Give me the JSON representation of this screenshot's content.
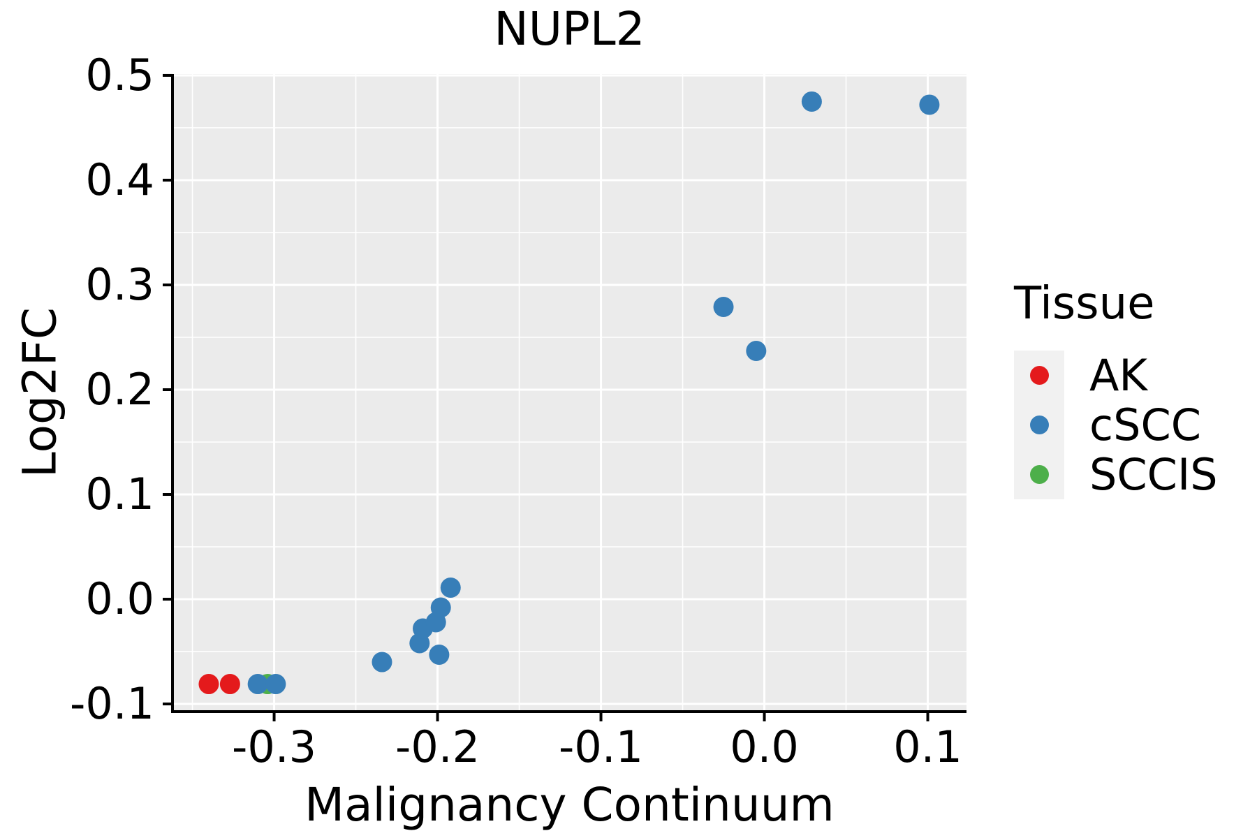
{
  "title": "NUPL2",
  "axes": {
    "x": {
      "label": "Malignancy Continuum",
      "domain": [
        -0.3622,
        0.1237
      ],
      "major_ticks": [
        {
          "v": -0.3,
          "label": "-0.3"
        },
        {
          "v": -0.2,
          "label": "-0.2"
        },
        {
          "v": -0.1,
          "label": "-0.1"
        },
        {
          "v": 0.0,
          "label": "0.0"
        },
        {
          "v": 0.1,
          "label": "0.1"
        }
      ],
      "minor_ticks": [
        -0.35,
        -0.25,
        -0.15,
        -0.05,
        0.05
      ]
    },
    "y": {
      "label": "Log2FC",
      "domain": [
        -0.1073,
        0.5013
      ],
      "major_ticks": [
        {
          "v": 0.5,
          "label": "0.5"
        },
        {
          "v": 0.4,
          "label": "0.4"
        },
        {
          "v": 0.3,
          "label": "0.3"
        },
        {
          "v": 0.2,
          "label": "0.2"
        },
        {
          "v": 0.1,
          "label": "0.1"
        },
        {
          "v": 0.0,
          "label": "0.0"
        },
        {
          "v": -0.1,
          "label": "-0.1"
        }
      ],
      "minor_ticks": [
        -0.05,
        0.05,
        0.15,
        0.25,
        0.35,
        0.45
      ]
    }
  },
  "legend": {
    "title": "Tissue",
    "items": [
      {
        "label": "AK",
        "color": "#E41A1C"
      },
      {
        "label": "cSCC",
        "color": "#377EB8"
      },
      {
        "label": "SCCIS",
        "color": "#4DAF4A"
      }
    ]
  },
  "colors": {
    "panel_background": "#EBEBEB",
    "grid": "#FFFFFF",
    "spine": "#000000",
    "legend_key_background": "#F1F1F1",
    "ak": "#E41A1C",
    "cscc": "#377EB8",
    "sccis": "#4DAF4A"
  },
  "chart_data": {
    "type": "scatter",
    "title": "NUPL2",
    "xlabel": "Malignancy Continuum",
    "ylabel": "Log2FC",
    "xlim": [
      -0.3622,
      0.1237
    ],
    "ylim": [
      -0.1073,
      0.5013
    ],
    "grid": true,
    "legend_position": "right",
    "series": [
      {
        "name": "AK",
        "color": "#E41A1C",
        "points": [
          [
            -0.34,
            -0.081
          ],
          [
            -0.327,
            -0.081
          ]
        ]
      },
      {
        "name": "SCCIS",
        "color": "#4DAF4A",
        "points": [
          [
            -0.304,
            -0.081
          ]
        ]
      },
      {
        "name": "cSCC",
        "color": "#377EB8",
        "points": [
          [
            -0.31,
            -0.081
          ],
          [
            -0.299,
            -0.081
          ],
          [
            -0.234,
            -0.06
          ],
          [
            -0.211,
            -0.042
          ],
          [
            -0.209,
            -0.028
          ],
          [
            -0.201,
            -0.022
          ],
          [
            -0.199,
            -0.053
          ],
          [
            -0.198,
            -0.008
          ],
          [
            -0.192,
            0.011
          ],
          [
            -0.025,
            0.279
          ],
          [
            -0.005,
            0.237
          ],
          [
            0.029,
            0.475
          ],
          [
            0.101,
            0.472
          ]
        ]
      }
    ]
  }
}
